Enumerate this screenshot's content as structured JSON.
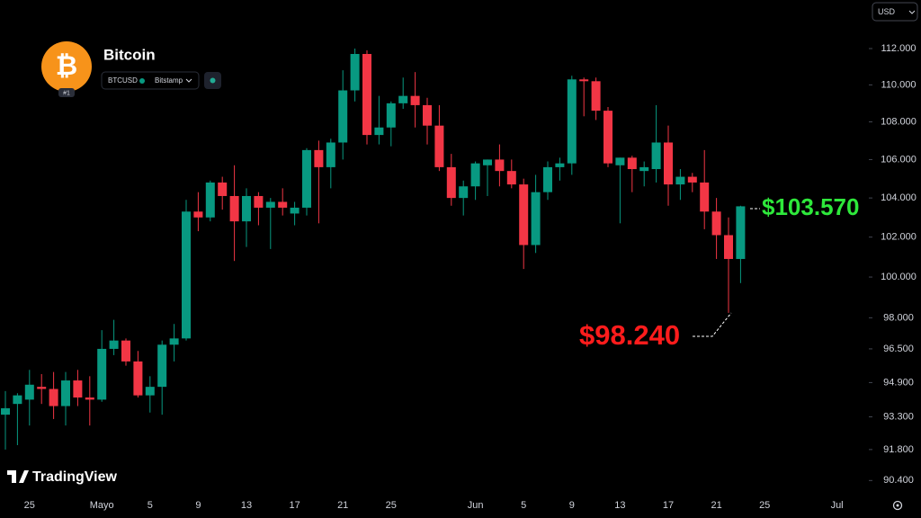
{
  "chart_data": {
    "type": "candlestick",
    "title": "Bitcoin",
    "symbol": "BTCUSD",
    "exchange": "Bitstamp",
    "rank": "#1",
    "currency": "USD",
    "brand": "TradingView",
    "categories": [
      null,
      null,
      "25",
      null,
      null,
      null,
      null,
      null,
      "Mayo",
      null,
      null,
      null,
      "5",
      null,
      null,
      null,
      "9",
      null,
      null,
      null,
      "13",
      null,
      null,
      null,
      "17",
      null,
      null,
      null,
      "21",
      null,
      null,
      null,
      "25",
      null,
      null,
      null,
      null,
      null,
      null,
      "Jun",
      null,
      null,
      null,
      "5",
      null,
      null,
      null,
      "9",
      null,
      null,
      null,
      "13",
      null,
      null,
      null,
      "17",
      null,
      null,
      null,
      "21",
      null,
      null,
      null,
      "25",
      null,
      null,
      null,
      null,
      null,
      "Jul"
    ],
    "open": [
      93400,
      93900,
      94100,
      94700,
      94600,
      93800,
      95000,
      94200,
      94100,
      96500,
      96900,
      95900,
      94300,
      94700,
      96700,
      97000,
      103300,
      103000,
      104800,
      104100,
      102800,
      104100,
      103500,
      103800,
      103200,
      103500,
      106500,
      105600,
      106900,
      109700,
      111700,
      107300,
      107700,
      109000,
      109400,
      108900,
      107800,
      105600,
      104000,
      104600,
      105700,
      106000,
      105400,
      104700,
      101600,
      104300,
      105600,
      105800,
      110300,
      110200,
      108600,
      105700,
      106100,
      105400,
      105500,
      106900,
      104700,
      105100,
      104800,
      103300,
      102100,
      100900,
      null,
      null,
      null,
      null,
      null,
      null,
      null,
      null
    ],
    "high": [
      94500,
      94400,
      95500,
      95300,
      95400,
      95400,
      95500,
      95200,
      97400,
      97900,
      97000,
      96400,
      95200,
      96900,
      97700,
      103900,
      104300,
      104900,
      105100,
      105700,
      104500,
      104300,
      104000,
      104500,
      103800,
      106600,
      107000,
      107100,
      110800,
      112000,
      111900,
      109400,
      109100,
      110400,
      110700,
      109300,
      108900,
      106300,
      104900,
      105900,
      106000,
      106800,
      106000,
      105000,
      105200,
      105900,
      106100,
      110500,
      110400,
      110400,
      108800,
      106100,
      106200,
      105900,
      108900,
      107800,
      105500,
      105300,
      106500,
      104000,
      103000,
      103600,
      null,
      null,
      null,
      null,
      null,
      null,
      null,
      null
    ],
    "low": [
      91800,
      92000,
      92900,
      93900,
      93200,
      92900,
      93800,
      92900,
      94000,
      96200,
      95700,
      94200,
      93500,
      93400,
      95900,
      96900,
      102300,
      102800,
      103400,
      100800,
      101500,
      102600,
      101400,
      103100,
      102600,
      103100,
      102700,
      104500,
      106000,
      109100,
      106800,
      106800,
      106700,
      108700,
      107700,
      106800,
      105400,
      103600,
      103100,
      103900,
      104100,
      104600,
      104500,
      100400,
      101200,
      103900,
      104900,
      105200,
      108300,
      108100,
      105600,
      102700,
      104300,
      104600,
      104800,
      103600,
      103900,
      104300,
      102400,
      100900,
      98240,
      99700,
      null,
      null,
      null,
      null,
      null,
      null,
      null,
      null
    ],
    "close": [
      93700,
      94300,
      94800,
      94600,
      93800,
      95000,
      94200,
      94100,
      96500,
      96900,
      95900,
      94300,
      94700,
      96700,
      97000,
      103300,
      103000,
      104800,
      104100,
      102800,
      104100,
      103500,
      103800,
      103500,
      103500,
      106500,
      105600,
      106900,
      109700,
      111700,
      107300,
      107700,
      109000,
      109400,
      108900,
      107800,
      105600,
      104000,
      104600,
      105800,
      106000,
      105400,
      104700,
      101600,
      104300,
      105600,
      105800,
      110300,
      110200,
      108600,
      105800,
      106100,
      105500,
      105600,
      106900,
      104700,
      105100,
      104800,
      103300,
      102100,
      100900,
      103570,
      null,
      null,
      null,
      null,
      null,
      null,
      null,
      null
    ],
    "up_color": "#089981",
    "down_color": "#f23645",
    "log_scale": true,
    "ylim": [
      89850,
      114730
    ],
    "yticks": [
      {
        "value": 90400,
        "label": "90.400"
      },
      {
        "value": 91800,
        "label": "91.800"
      },
      {
        "value": 93300,
        "label": "93.300"
      },
      {
        "value": 94900,
        "label": "94.900"
      },
      {
        "value": 96500,
        "label": "96.500"
      },
      {
        "value": 98000,
        "label": "98.000"
      },
      {
        "value": 100000,
        "label": "100.000"
      },
      {
        "value": 102000,
        "label": "102.000"
      },
      {
        "value": 104000,
        "label": "104.000"
      },
      {
        "value": 106000,
        "label": "106.000"
      },
      {
        "value": 108000,
        "label": "108.000"
      },
      {
        "value": 110000,
        "label": "110.000"
      },
      {
        "value": 112000,
        "label": "112.000"
      }
    ],
    "annotations": [
      {
        "text": "$103.570",
        "color": "#2ee83b"
      },
      {
        "text": "$98.240",
        "color": "#ff1c1c"
      }
    ]
  }
}
